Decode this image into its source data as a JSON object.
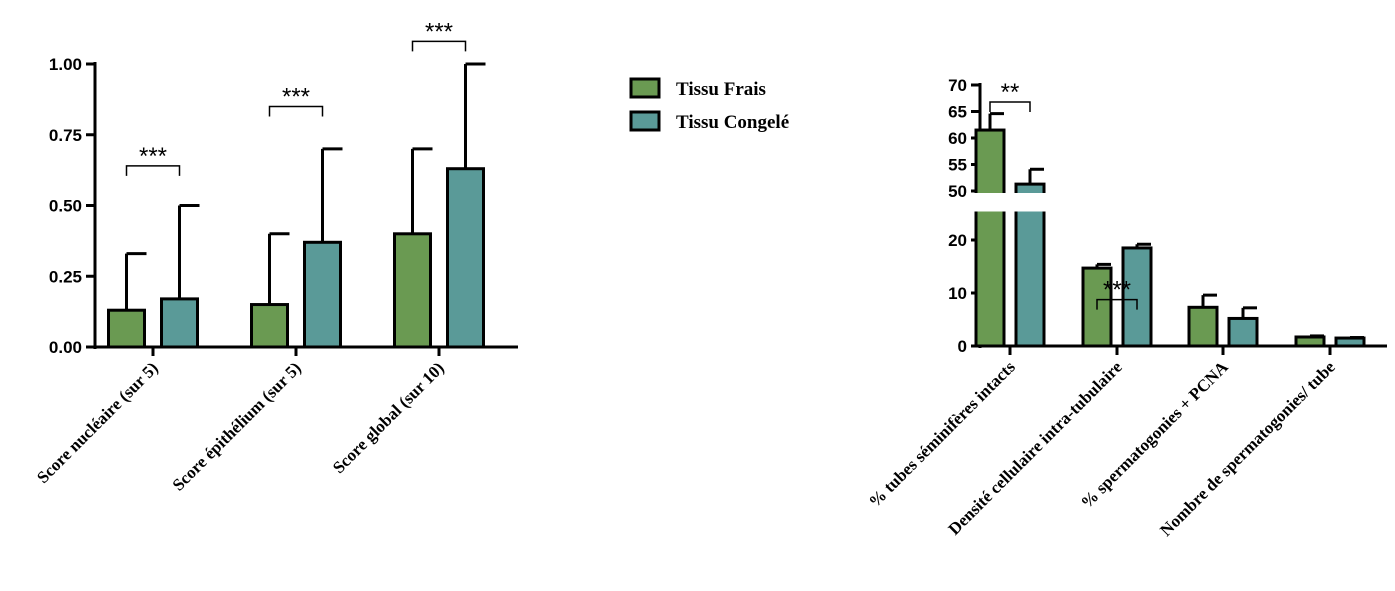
{
  "colors": {
    "frais": "#6a9a52",
    "congele": "#5a9a98",
    "stroke": "#000000"
  },
  "legend": {
    "items": [
      {
        "label": "Tissu Frais"
      },
      {
        "label": "Tissu Congelé"
      }
    ]
  },
  "chart_data": [
    {
      "type": "bar",
      "categories": [
        "Score nucléaire (sur 5)",
        "Score épithélium (sur 5)",
        "Score global (sur 10)"
      ],
      "series": [
        {
          "name": "Tissu Frais",
          "values": [
            0.13,
            0.15,
            0.4
          ],
          "error_upper": [
            0.33,
            0.4,
            0.7
          ]
        },
        {
          "name": "Tissu Congelé",
          "values": [
            0.17,
            0.37,
            0.63
          ],
          "error_upper": [
            0.5,
            0.7,
            1.0
          ]
        }
      ],
      "ylim": [
        0,
        1.0
      ],
      "yticks": [
        "0.00",
        "0.25",
        "0.50",
        "0.75",
        "1.00"
      ],
      "ytick_values": [
        0,
        0.25,
        0.5,
        0.75,
        1.0
      ],
      "significance": [
        {
          "category_index": 0,
          "label": "***",
          "bracket_y": 0.64
        },
        {
          "category_index": 1,
          "label": "***",
          "bracket_y": 0.85
        },
        {
          "category_index": 2,
          "label": "***",
          "bracket_y": 1.08
        }
      ],
      "legend": "top-right"
    },
    {
      "type": "bar",
      "categories": [
        "% tubes séminifères intacts",
        "Densité cellulaire intra-tubulaire",
        "% spermatogonies + PCNA",
        "Nombre de spermatogonies/ tube"
      ],
      "series": [
        {
          "name": "Tissu Frais",
          "values": [
            61.5,
            14.7,
            7.3,
            1.7
          ],
          "error_upper": [
            64.6,
            15.4,
            9.6,
            1.9
          ]
        },
        {
          "name": "Tissu Congelé",
          "values": [
            51.3,
            18.5,
            5.2,
            1.5
          ],
          "error_upper": [
            54.1,
            19.2,
            7.2,
            1.6
          ]
        }
      ],
      "y_axis_break": [
        25,
        50
      ],
      "ylim": [
        0,
        70
      ],
      "yticks": [
        "0",
        "10",
        "20",
        "50",
        "55",
        "60",
        "65",
        "70"
      ],
      "ytick_values": [
        0,
        10,
        20,
        50,
        55,
        60,
        65,
        70
      ],
      "significance": [
        {
          "category_index": 0,
          "label": "**",
          "bracket_y": 66.8
        },
        {
          "category_index": 1,
          "label": "***",
          "bracket_y": 29.5
        }
      ]
    }
  ]
}
